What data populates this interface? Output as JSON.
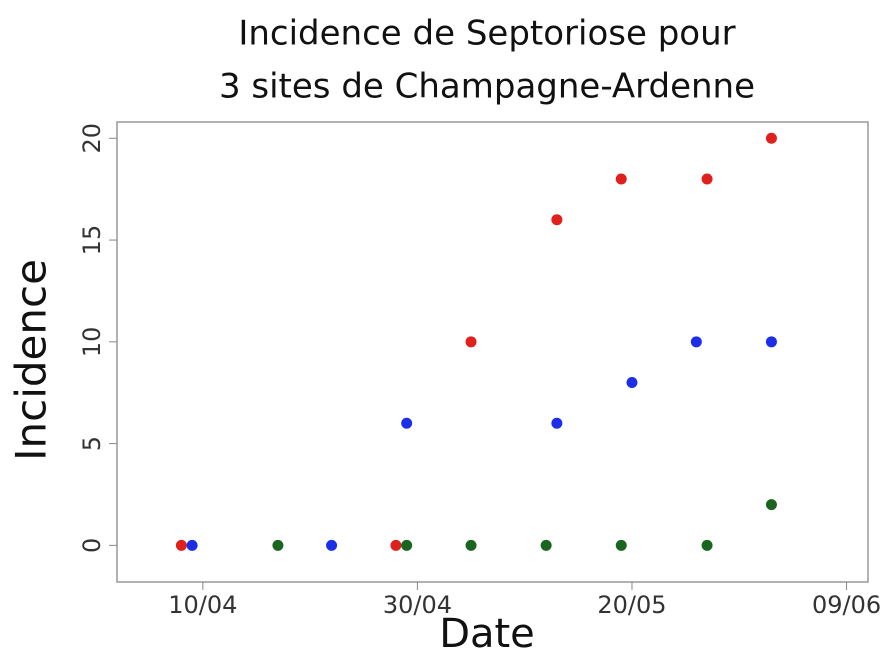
{
  "chart_data": {
    "type": "scatter",
    "title": [
      "Incidence de Septoriose pour",
      "3 sites de Champagne-Ardenne"
    ],
    "xlabel": "Date",
    "ylabel": "Incidence",
    "xlim": [
      "02/04",
      "11/06"
    ],
    "xticks": [
      "10/04",
      "30/04",
      "20/05",
      "09/06"
    ],
    "ylim": [
      -1.8,
      20.8
    ],
    "yticks": [
      0,
      5,
      10,
      15,
      20
    ],
    "series": [
      {
        "color": "#e0201c",
        "x": [
          "08/04",
          "28/04",
          "05/05",
          "13/05",
          "19/05",
          "27/05",
          "02/06"
        ],
        "values": [
          0,
          0,
          10,
          16,
          18,
          18,
          20
        ]
      },
      {
        "color": "#1c2ee8",
        "x": [
          "09/04",
          "22/04",
          "29/04",
          "13/05",
          "20/05",
          "26/05",
          "02/06"
        ],
        "values": [
          0,
          0,
          6,
          6,
          8,
          10,
          10
        ]
      },
      {
        "color": "#1a6620",
        "x": [
          "17/04",
          "29/04",
          "05/05",
          "12/05",
          "19/05",
          "27/05",
          "02/06"
        ],
        "values": [
          0,
          0,
          0,
          0,
          0,
          0,
          2
        ]
      }
    ]
  }
}
